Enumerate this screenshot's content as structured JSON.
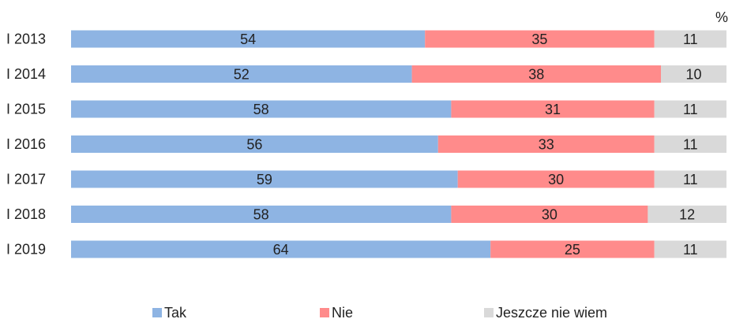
{
  "chart_data": {
    "type": "bar",
    "orientation": "horizontal",
    "stacked": true,
    "unit": "%",
    "categories": [
      "I 2013",
      "I 2014",
      "I 2015",
      "I 2016",
      "I 2017",
      "I 2018",
      "I 2019"
    ],
    "series": [
      {
        "name": "Tak",
        "color": "#8eb4e3",
        "values": [
          54,
          52,
          58,
          56,
          59,
          58,
          64
        ]
      },
      {
        "name": "Nie",
        "color": "#ff8b8b",
        "values": [
          35,
          38,
          31,
          33,
          30,
          30,
          25
        ]
      },
      {
        "name": "Jeszcze nie wiem",
        "color": "#d9d9d9",
        "values": [
          11,
          10,
          11,
          11,
          11,
          12,
          11
        ]
      }
    ],
    "xlim": [
      0,
      100
    ],
    "grid": false,
    "legend": "bottom"
  }
}
